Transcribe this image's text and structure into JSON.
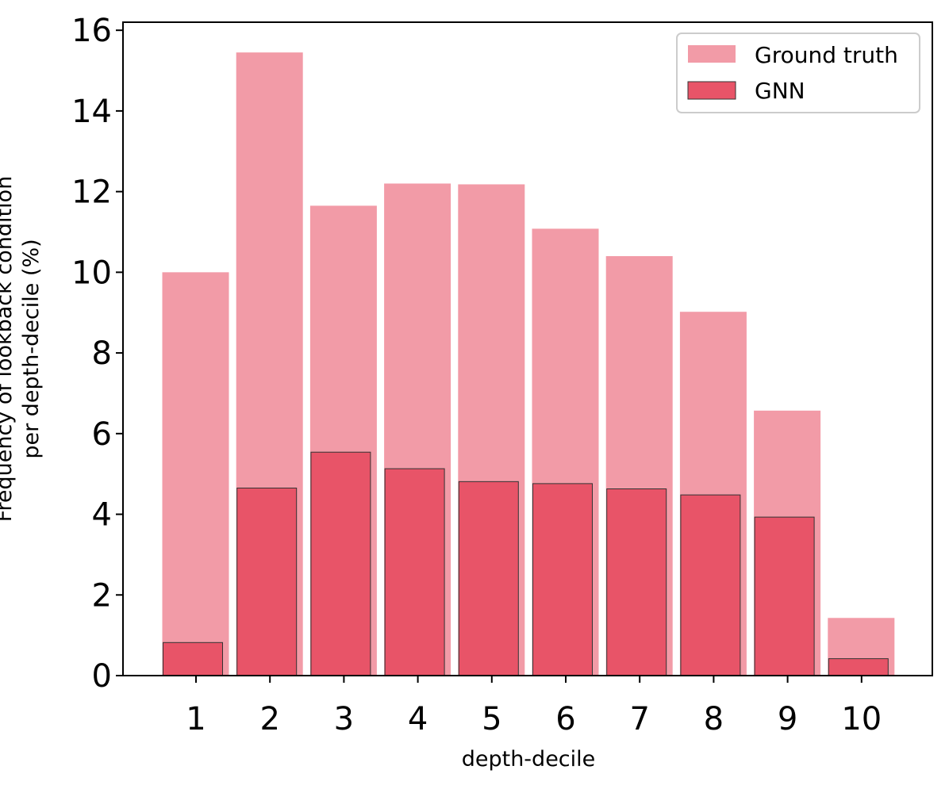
{
  "chart_data": {
    "type": "bar",
    "categories": [
      "1",
      "2",
      "3",
      "4",
      "5",
      "6",
      "7",
      "8",
      "9",
      "10"
    ],
    "series": [
      {
        "name": "Ground truth",
        "color": "#f29ba7",
        "values": [
          10.0,
          15.45,
          11.65,
          12.2,
          12.18,
          11.08,
          10.4,
          9.02,
          6.57,
          1.43
        ]
      },
      {
        "name": "GNN",
        "color": "#e85468",
        "values": [
          0.82,
          4.65,
          5.54,
          5.13,
          4.81,
          4.76,
          4.63,
          4.48,
          3.93,
          0.42
        ]
      }
    ],
    "xlabel": "depth-decile",
    "ylabel_lines": [
      "Frequency of lookback condition",
      "per depth-decile (%)"
    ],
    "ylim": [
      0,
      16.2
    ],
    "yticks": [
      "0",
      "2",
      "4",
      "6",
      "8",
      "10",
      "12",
      "14",
      "16"
    ],
    "legend": {
      "position": "top-right",
      "entries": [
        "Ground truth",
        "GNN"
      ]
    },
    "grid": false
  }
}
